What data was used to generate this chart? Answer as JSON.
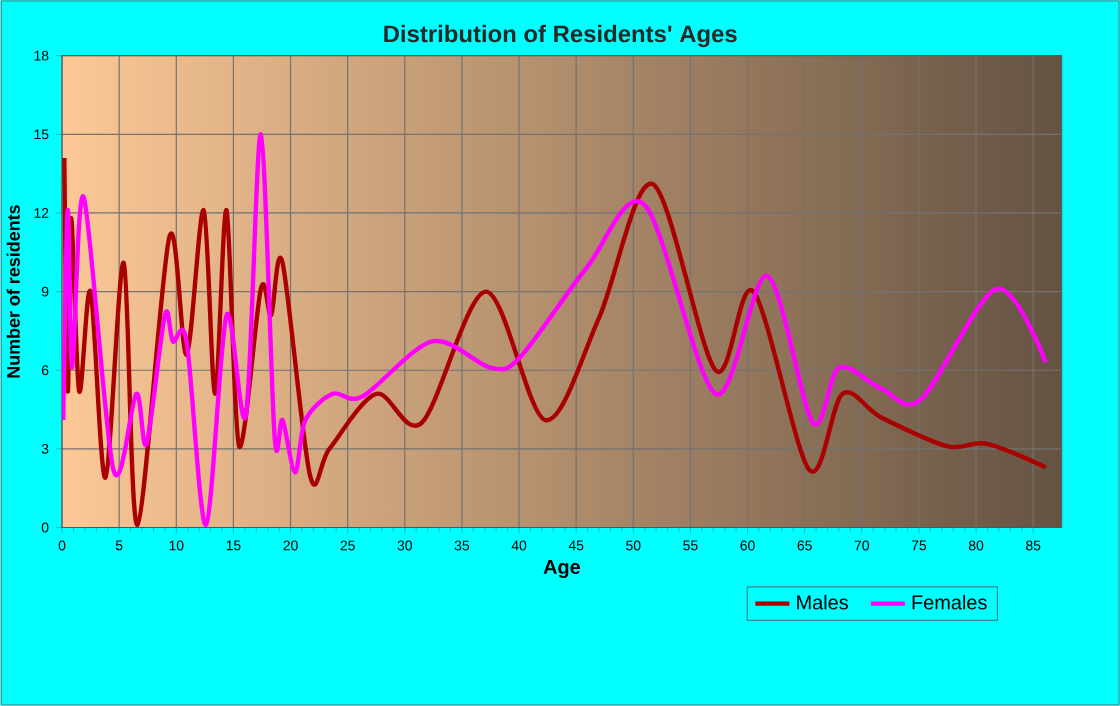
{
  "chart_data": {
    "type": "line",
    "title": "Distribution of Residents' Ages",
    "xlabel": "Age",
    "ylabel": "Number of residents",
    "xlim": [
      0,
      87.5
    ],
    "xticks": [
      0,
      5,
      10,
      15,
      20,
      25,
      30,
      35,
      40,
      45,
      50,
      55,
      60,
      65,
      70,
      75,
      80,
      85
    ],
    "ylim": [
      0,
      18
    ],
    "yticks": [
      0,
      3,
      6,
      9,
      12,
      15,
      18
    ],
    "grid": true,
    "legend": "bottom right",
    "marker": "none",
    "line_style": "solid",
    "series": [
      {
        "name": "Males",
        "color": "#aa0000",
        "x": [
          0.2,
          0.5,
          0.8,
          1.5,
          2.5,
          3.8,
          5.4,
          6.6,
          9.4,
          10.9,
          12.4,
          13.4,
          14.4,
          15.5,
          17.4,
          18.3,
          19.3,
          21.7,
          23.4,
          27.5,
          31.5,
          37.1,
          42.3,
          47,
          51.7,
          57.2,
          60.5,
          65.4,
          68.3,
          71.7,
          77.5,
          80.9,
          86.1
        ],
        "values": [
          14.1,
          5.2,
          11.8,
          5.2,
          9,
          1.9,
          10.1,
          0.1,
          11.1,
          6.6,
          12.1,
          5.1,
          12.1,
          3.1,
          9.1,
          8.1,
          10.1,
          2.0,
          3.0,
          5.1,
          4.0,
          9.0,
          4.1,
          8,
          13.1,
          6.0,
          9.0,
          2.2,
          5.1,
          4.2,
          3.1,
          3.2,
          2.3
        ]
      },
      {
        "name": "Females",
        "color": "#ff00ff",
        "x": [
          0.1,
          0.5,
          0.9,
          1.9,
          4.5,
          6.5,
          7.4,
          9,
          9.7,
          10.9,
          12.6,
          14.4,
          16.1,
          17.4,
          18.6,
          19.3,
          20.4,
          21.3,
          23.7,
          26.3,
          32.4,
          37.5,
          40.1,
          45.9,
          51,
          57.2,
          61.7,
          65.7,
          68,
          71.7,
          75.2,
          81.8,
          86.1
        ],
        "values": [
          4.1,
          12.1,
          6.1,
          12.6,
          2.2,
          5.1,
          3.2,
          8.1,
          7.1,
          7.1,
          0.1,
          8.1,
          4.3,
          15,
          3.5,
          4.1,
          2.1,
          4.1,
          5.1,
          5.0,
          7.1,
          6.1,
          6.5,
          9.9,
          12.3,
          5.1,
          9.6,
          4.0,
          6.1,
          5.3,
          4.9,
          9.1,
          6.3
        ]
      }
    ]
  }
}
